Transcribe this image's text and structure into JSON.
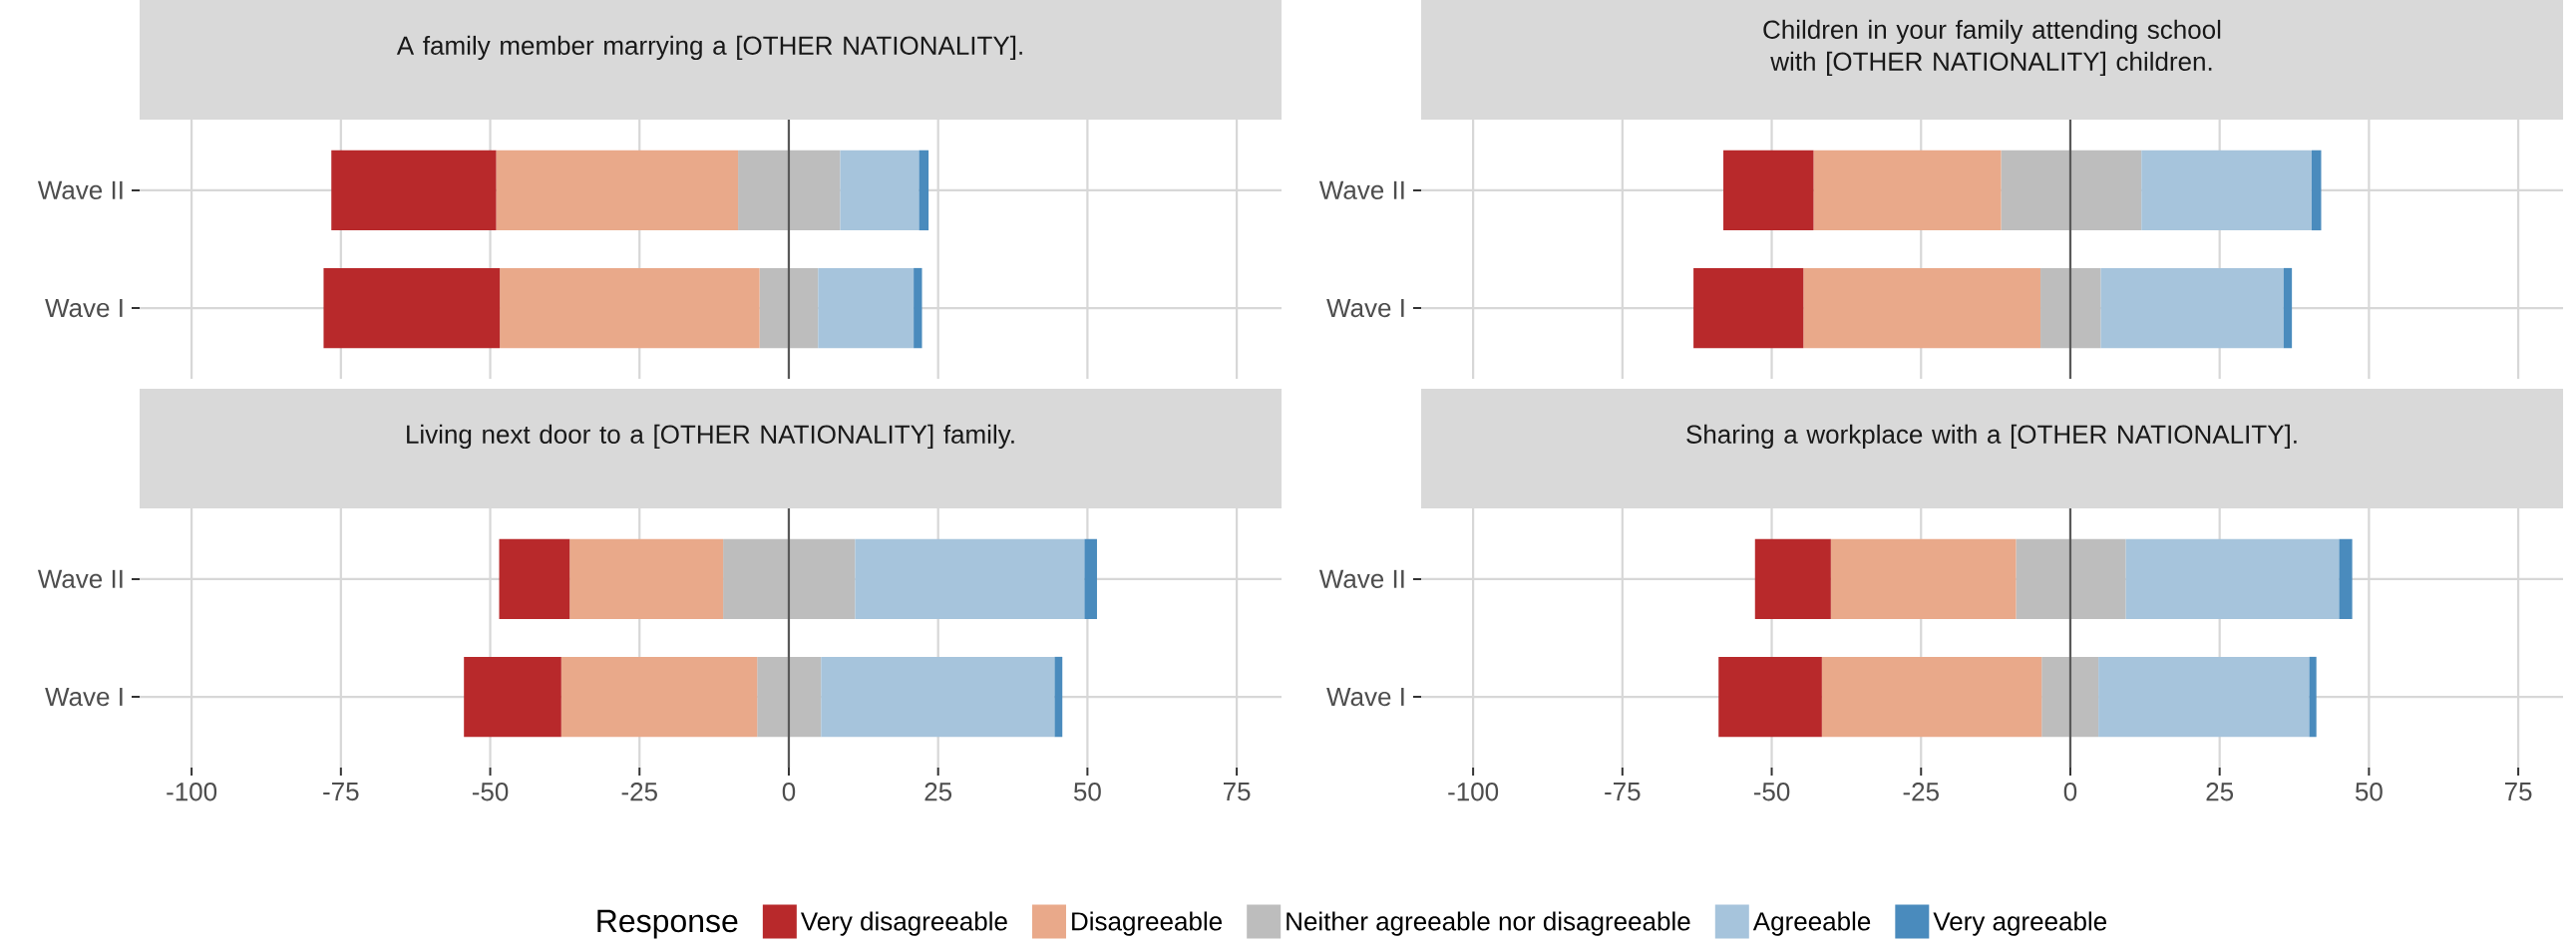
{
  "chart_data": [
    {
      "type": "bar",
      "title": "A family member marrying a [OTHER NATIONALITY].",
      "orientation": "horizontal",
      "stacked": true,
      "categories": [
        "Wave II",
        "Wave I"
      ],
      "series": [
        {
          "color": "#bdbdbd",
          "values": [
            -8.5,
            -4.9
          ]
        },
        {
          "color": "#e9a98a",
          "values": [
            -40.5,
            -43.5
          ]
        },
        {
          "color": "#b8292b",
          "values": [
            -27.6,
            -29.5
          ]
        },
        {
          "color": "#bdbdbd",
          "values": [
            8.6,
            4.9
          ]
        },
        {
          "color": "#a6c4dc",
          "values": [
            13.2,
            16.0
          ]
        },
        {
          "color": "#4a8bbd",
          "values": [
            1.6,
            1.4
          ]
        }
      ],
      "xlim": [
        -108.7,
        82.5
      ],
      "xticks": [
        -100,
        -75,
        -50,
        -25,
        0,
        25,
        50,
        75
      ],
      "grid": true,
      "tick_labels": "y",
      "ref_lines": [
        {
          "axis": "x",
          "value": 0,
          "color": "#595959"
        }
      ]
    },
    {
      "type": "bar",
      "title": "Children in your family attending school with [OTHER NATIONALITY] children.",
      "orientation": "horizontal",
      "stacked": true,
      "categories": [
        "Wave II",
        "Wave I"
      ],
      "series": [
        {
          "color": "#bdbdbd",
          "values": [
            -11.6,
            -5.0
          ]
        },
        {
          "color": "#e9a98a",
          "values": [
            -31.4,
            -39.7
          ]
        },
        {
          "color": "#b8292b",
          "values": [
            -15.1,
            -18.4
          ]
        },
        {
          "color": "#bdbdbd",
          "values": [
            11.9,
            5.1
          ]
        },
        {
          "color": "#a6c4dc",
          "values": [
            28.5,
            30.6
          ]
        },
        {
          "color": "#4a8bbd",
          "values": [
            1.6,
            1.4
          ]
        }
      ],
      "xlim": [
        -108.7,
        82.5
      ],
      "xticks": [
        -100,
        -75,
        -50,
        -25,
        0,
        25,
        50,
        75
      ],
      "grid": true,
      "tick_labels": "y",
      "ref_lines": [
        {
          "axis": "x",
          "value": 0,
          "color": "#595959"
        }
      ]
    },
    {
      "type": "bar",
      "title": "Living next door to a [OTHER NATIONALITY] family.",
      "orientation": "horizontal",
      "stacked": true,
      "categories": [
        "Wave II",
        "Wave I"
      ],
      "series": [
        {
          "color": "#bdbdbd",
          "values": [
            -11.0,
            -5.3
          ]
        },
        {
          "color": "#e9a98a",
          "values": [
            -25.7,
            -32.8
          ]
        },
        {
          "color": "#b8292b",
          "values": [
            -11.8,
            -16.3
          ]
        },
        {
          "color": "#bdbdbd",
          "values": [
            11.1,
            5.4
          ]
        },
        {
          "color": "#a6c4dc",
          "values": [
            38.4,
            39.1
          ]
        },
        {
          "color": "#4a8bbd",
          "values": [
            2.1,
            1.3
          ]
        }
      ],
      "xlim": [
        -108.7,
        82.5
      ],
      "xticks": [
        -100,
        -75,
        -50,
        -25,
        0,
        25,
        50,
        75
      ],
      "grid": true,
      "ref_lines": [
        {
          "axis": "x",
          "value": 0,
          "color": "#595959"
        }
      ]
    },
    {
      "type": "bar",
      "title": "Sharing a workplace with a [OTHER NATIONALITY].",
      "orientation": "horizontal",
      "stacked": true,
      "categories": [
        "Wave II",
        "Wave I"
      ],
      "series": [
        {
          "color": "#bdbdbd",
          "values": [
            -9.1,
            -4.8
          ]
        },
        {
          "name": "Disagreeable",
          "color": "#e9a98a",
          "values": [
            -31.0,
            -36.8
          ]
        },
        {
          "name": "Very disagreeable",
          "color": "#b8292b",
          "values": [
            -12.7,
            -17.3
          ]
        },
        {
          "name": "Neither agreeable nor disagreeable",
          "color": "#bdbdbd",
          "values": [
            9.3,
            4.7
          ]
        },
        {
          "name": "Agreeable",
          "color": "#a6c4dc",
          "values": [
            35.7,
            35.3
          ]
        },
        {
          "name": "Very agreeable",
          "color": "#4a8bbd",
          "values": [
            2.2,
            1.2
          ]
        }
      ],
      "xlim": [
        -108.7,
        82.5
      ],
      "xticks": [
        -100,
        -75,
        -50,
        -25,
        0,
        25,
        50,
        75
      ],
      "grid": true,
      "legend": "bottom",
      "legend_title": "Response",
      "ref_lines": [
        {
          "axis": "x",
          "value": 0,
          "color": "#595959"
        }
      ]
    }
  ]
}
